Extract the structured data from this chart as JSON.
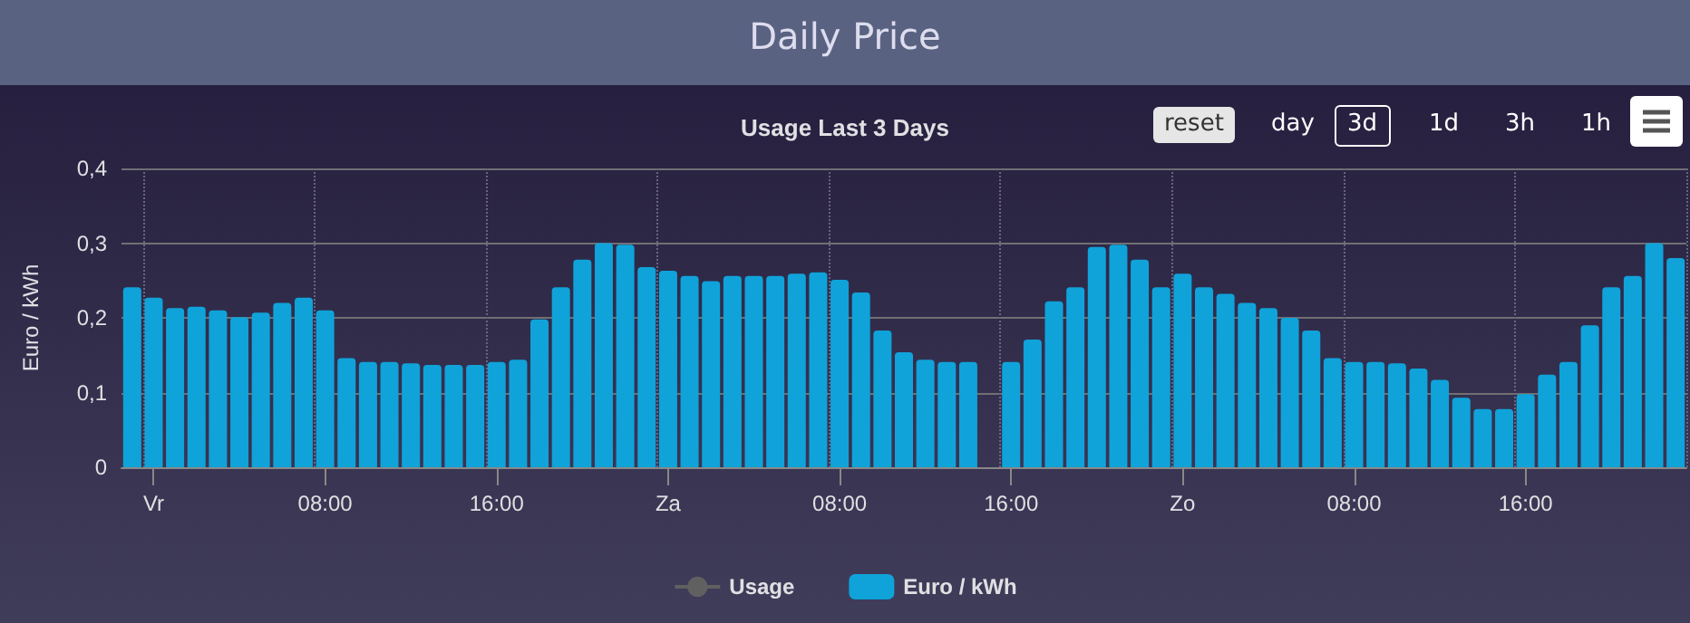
{
  "chart_data": {
    "type": "bar",
    "title": "Daily Price",
    "subtitle": "Usage Last 3 Days",
    "ylabel": "Euro / kWh",
    "annotations": [
      "reset",
      "day",
      "3d",
      "1d",
      "3h",
      "1h"
    ],
    "categories": [
      null,
      "Vr",
      null,
      null,
      null,
      null,
      null,
      null,
      null,
      "08:00",
      null,
      null,
      null,
      null,
      null,
      null,
      null,
      "16:00",
      null,
      null,
      null,
      null,
      null,
      null,
      null,
      "Za",
      null,
      null,
      null,
      null,
      null,
      null,
      null,
      "08:00",
      null,
      null,
      null,
      null,
      null,
      null,
      null,
      "16:00",
      null,
      null,
      null,
      null,
      null,
      null,
      null,
      "Zo",
      null,
      null,
      null,
      null,
      null,
      null,
      null,
      "08:00",
      null,
      null,
      null,
      null,
      null,
      null,
      null,
      "16:00",
      null,
      null,
      null,
      null,
      null,
      null,
      null
    ],
    "series": [
      {
        "name": "Usage",
        "type": "line",
        "color": "#606060",
        "values": [
          null,
          null,
          null,
          null,
          null,
          null,
          null,
          null,
          null,
          null,
          null,
          null,
          null,
          null,
          null,
          null,
          null,
          null,
          null,
          null,
          null,
          null,
          null,
          null,
          null,
          null,
          null,
          null,
          null,
          null,
          null,
          null,
          null,
          null,
          null,
          null,
          null,
          null,
          null,
          null,
          null,
          null,
          null,
          null,
          null,
          null,
          null,
          null,
          null,
          null,
          null,
          null,
          null,
          null,
          null,
          null,
          null,
          null,
          null,
          null,
          null,
          null,
          null,
          null,
          null,
          null,
          null,
          null,
          null,
          null,
          null,
          null,
          null
        ]
      },
      {
        "name": "Euro / kWh",
        "color": "#0fa3da",
        "values": [
          0.241,
          0.227,
          0.213,
          0.215,
          0.21,
          0.201,
          0.207,
          0.22,
          0.227,
          0.21,
          0.146,
          0.141,
          0.141,
          0.139,
          0.137,
          0.137,
          0.137,
          0.141,
          0.144,
          0.198,
          0.241,
          0.278,
          0.3,
          0.298,
          0.268,
          0.263,
          0.256,
          0.249,
          0.256,
          0.256,
          0.256,
          0.259,
          0.261,
          0.251,
          0.234,
          0.183,
          0.154,
          0.144,
          0.141,
          0.141,
          null,
          0.141,
          0.171,
          0.222,
          0.241,
          0.295,
          0.298,
          0.278,
          0.241,
          0.259,
          0.241,
          0.232,
          0.22,
          0.213,
          0.2,
          0.183,
          0.146,
          0.141,
          0.141,
          0.139,
          0.132,
          0.117,
          0.093,
          0.078,
          0.078,
          0.098,
          0.124,
          0.141,
          0.19,
          0.241,
          0.256,
          0.3,
          0.28
        ]
      }
    ],
    "ylim": [
      0,
      0.4
    ],
    "yticks": [
      {
        "value": 0,
        "label": "0"
      },
      {
        "value": 0.1,
        "label": "0,1"
      },
      {
        "value": 0.2,
        "label": "0,2"
      },
      {
        "value": 0.3,
        "label": "0,3"
      },
      {
        "value": 0.4,
        "label": "0,4"
      }
    ],
    "grid": true,
    "legend": "bottom"
  }
}
